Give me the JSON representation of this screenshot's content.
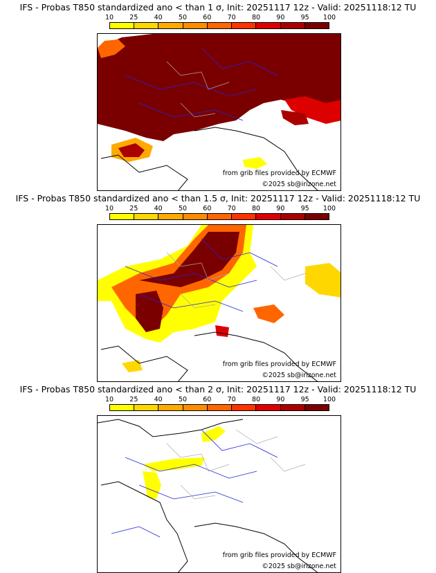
{
  "panels": [
    {
      "title": "IFS - Probas T850  standardized ano < than 1 σ, Init: 20251117 12z - Valid: 20251118:12 TU",
      "threshold": "1 σ"
    },
    {
      "title": "IFS - Probas T850  standardized ano < than 1.5 σ, Init: 20251117 12z - Valid: 20251118:12 TU",
      "threshold": "1.5 σ"
    },
    {
      "title": "IFS - Probas T850  standardized ano < than 2 σ, Init: 20251117 12z - Valid: 20251118:12 TU",
      "threshold": "2 σ"
    }
  ],
  "legend": {
    "ticks": [
      "10",
      "25",
      "40",
      "50",
      "60",
      "70",
      "80",
      "90",
      "95",
      "100"
    ],
    "colors": [
      "#ffff00",
      "#ffd700",
      "#ffaa00",
      "#ff8c00",
      "#ff6600",
      "#ff3300",
      "#dd0000",
      "#aa0000",
      "#7a0000"
    ]
  },
  "credits": {
    "source": "from grib files provided by ECMWF",
    "copyright": "©2025 sb@irizone.net"
  },
  "colors": {
    "coast": "#000000",
    "rivers": "#2222dd",
    "borders": "#aaaaaa"
  }
}
